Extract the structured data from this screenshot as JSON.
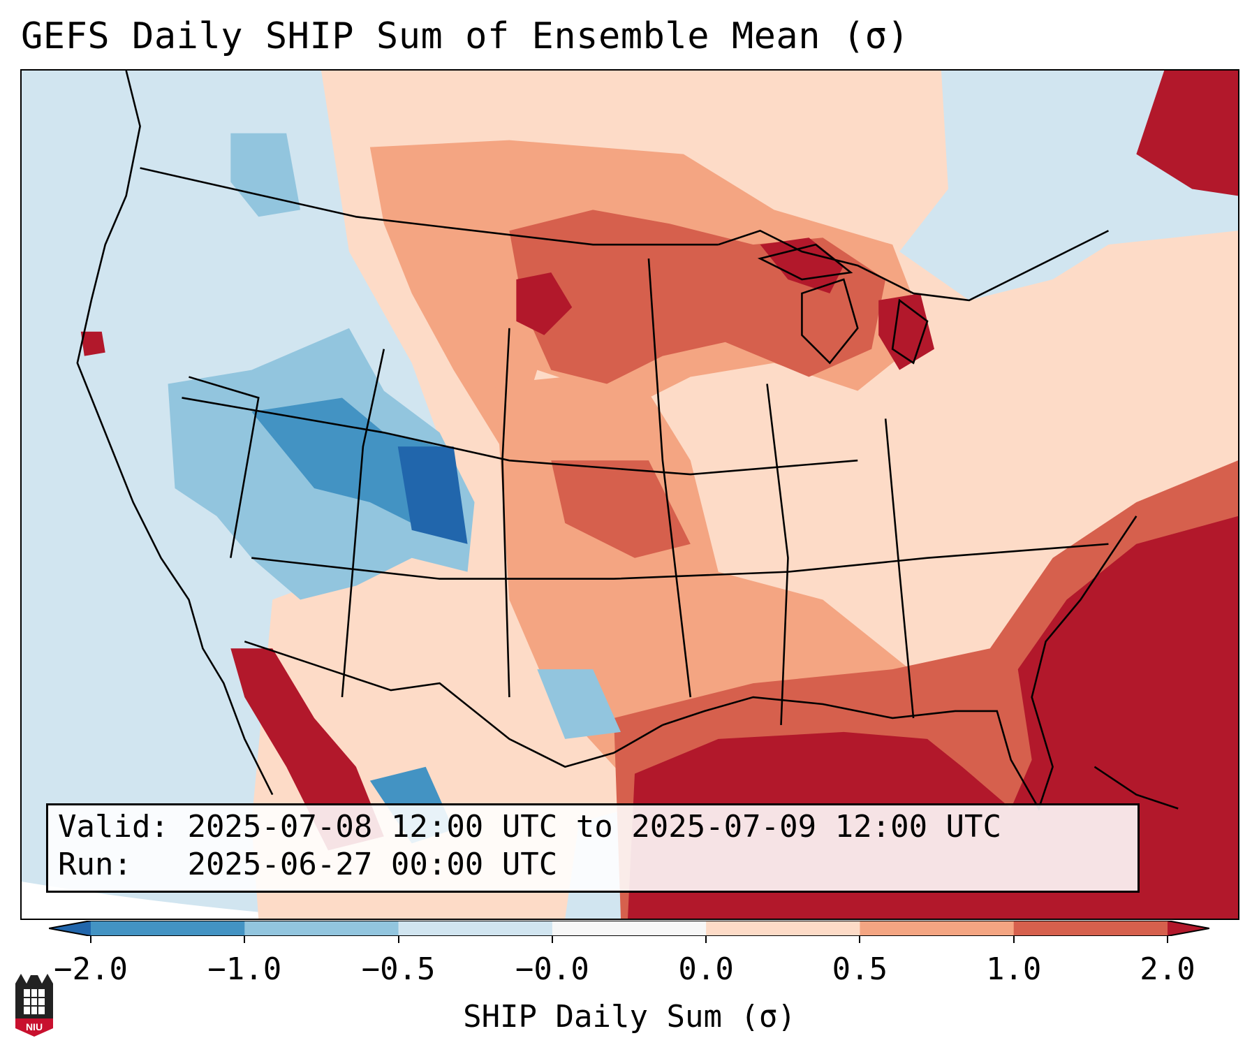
{
  "title": "GEFS Daily SHIP Sum of Ensemble Mean (σ)",
  "info": {
    "valid_label": "Valid:",
    "valid_value": "2025-07-08 12:00 UTC to 2025-07-09 12:00 UTC",
    "run_label": "Run:",
    "run_value": "2025-06-27 00:00 UTC"
  },
  "colorbar": {
    "title": "SHIP Daily Sum (σ)",
    "tick_labels": [
      "−2.0",
      "−1.0",
      "−0.5",
      "−0.0",
      "0.0",
      "0.5",
      "1.0",
      "2.0"
    ],
    "bins": [
      {
        "range": "< -2.0",
        "color": "#2166ac"
      },
      {
        "range": "-2.0 to -1.0",
        "color": "#4393c3"
      },
      {
        "range": "-1.0 to -0.5",
        "color": "#92c5de"
      },
      {
        "range": "-0.5 to -0.0",
        "color": "#d1e5f0"
      },
      {
        "range": "-0.0 to 0.0",
        "color": "#f7f7f7"
      },
      {
        "range": "0.0 to 0.5",
        "color": "#fddbc7"
      },
      {
        "range": "0.5 to 1.0",
        "color": "#f4a582"
      },
      {
        "range": "1.0 to 2.0",
        "color": "#d6604d"
      },
      {
        "range": "> 2.0",
        "color": "#b2182b"
      }
    ]
  },
  "logo": {
    "text": "NIU",
    "icon": "university-logo-icon",
    "color": "#c8102e"
  }
}
